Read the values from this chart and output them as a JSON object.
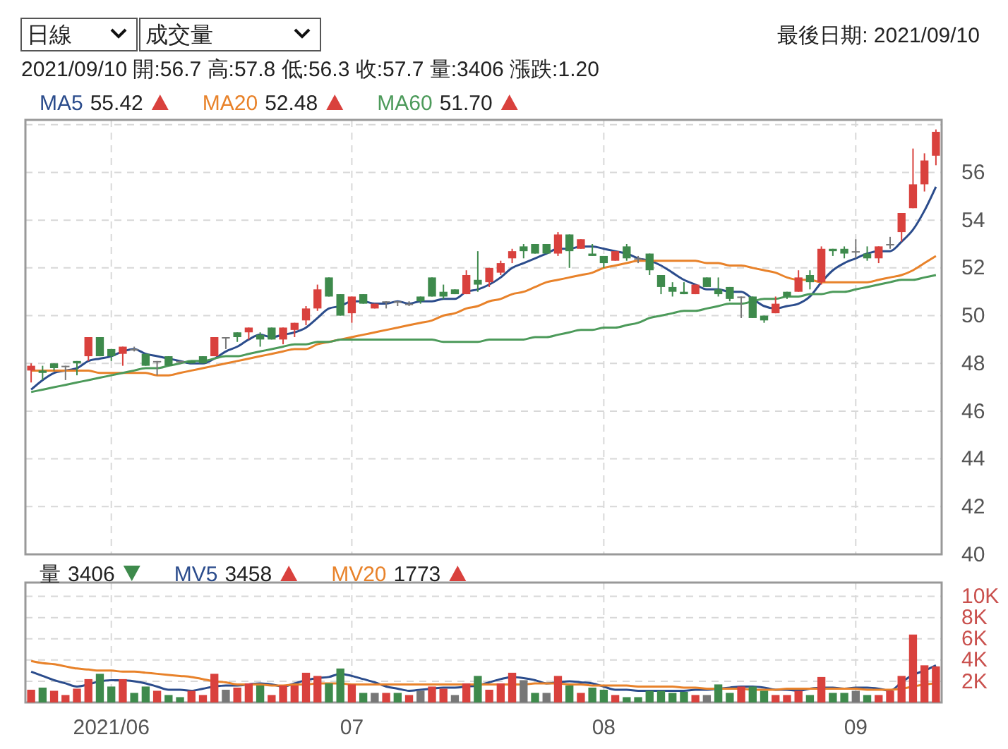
{
  "chart_data": [
    {
      "type": "candlestick",
      "subtitle": "2021/09/10 開:56.7 高:57.8 低:56.3 收:57.7 量:3406 漲跌:1.20",
      "annotations": [
        "日線",
        "成交量",
        "最後日期: 2021/09/10",
        "55.42",
        "52.48",
        "51.70"
      ],
      "categories": [
        null,
        null,
        null,
        null,
        null,
        null,
        null,
        "2021/06",
        null,
        null,
        null,
        null,
        null,
        null,
        null,
        null,
        null,
        null,
        null,
        null,
        null,
        null,
        null,
        null,
        null,
        null,
        null,
        null,
        "07",
        null,
        null,
        null,
        null,
        null,
        null,
        null,
        null,
        null,
        null,
        null,
        null,
        null,
        null,
        null,
        null,
        null,
        null,
        null,
        null,
        null,
        "08",
        null,
        null,
        null,
        null,
        null,
        null,
        null,
        null,
        null,
        null,
        null,
        null,
        null,
        null,
        null,
        null,
        null,
        null,
        null,
        null,
        null,
        "09",
        null,
        null,
        null,
        null,
        null,
        null,
        null
      ],
      "ohlc": [
        [
          47.7,
          48.0,
          47.2,
          47.9
        ],
        [
          47.7,
          47.9,
          47.3,
          47.6
        ],
        [
          48.0,
          48.0,
          47.7,
          47.8
        ],
        [
          47.9,
          47.9,
          47.3,
          47.9
        ],
        [
          48.1,
          48.1,
          47.5,
          48.0
        ],
        [
          48.3,
          49.1,
          48.1,
          49.1
        ],
        [
          49.1,
          49.1,
          48.3,
          48.3
        ],
        [
          48.6,
          48.6,
          48.1,
          48.3
        ],
        [
          48.4,
          48.7,
          47.9,
          48.7
        ],
        [
          48.6,
          48.7,
          48.5,
          48.6
        ],
        [
          48.4,
          48.4,
          47.9,
          47.9
        ],
        [
          48.1,
          48.1,
          47.5,
          48.1
        ],
        [
          48.3,
          48.3,
          47.9,
          47.9
        ],
        [
          48.1,
          48.1,
          48.0,
          48.1
        ],
        [
          48.1,
          48.1,
          48.0,
          48.0
        ],
        [
          48.3,
          48.3,
          48.0,
          48.0
        ],
        [
          48.3,
          49.1,
          48.3,
          49.1
        ],
        [
          49.1,
          49.1,
          48.6,
          49.1
        ],
        [
          49.3,
          49.3,
          48.9,
          49.1
        ],
        [
          49.3,
          49.5,
          49.0,
          49.5
        ],
        [
          49.2,
          49.3,
          48.7,
          49.0
        ],
        [
          49.5,
          49.5,
          49.0,
          49.0
        ],
        [
          49.0,
          49.5,
          48.8,
          49.5
        ],
        [
          49.4,
          49.7,
          49.1,
          49.7
        ],
        [
          49.8,
          50.4,
          49.6,
          50.3
        ],
        [
          50.3,
          51.3,
          50.2,
          51.1
        ],
        [
          51.6,
          51.6,
          50.8,
          50.8
        ],
        [
          50.9,
          50.9,
          50.0,
          50.0
        ],
        [
          50.1,
          50.8,
          49.7,
          50.8
        ],
        [
          50.9,
          50.9,
          50.5,
          50.5
        ],
        [
          50.3,
          50.5,
          50.3,
          50.5
        ],
        [
          50.6,
          50.6,
          50.3,
          50.6
        ],
        [
          50.6,
          50.6,
          50.4,
          50.6
        ],
        [
          50.5,
          50.6,
          50.4,
          50.5
        ],
        [
          50.8,
          50.8,
          50.5,
          50.6
        ],
        [
          51.6,
          51.6,
          50.8,
          50.8
        ],
        [
          51.0,
          51.3,
          50.7,
          50.8
        ],
        [
          51.1,
          51.1,
          50.9,
          50.9
        ],
        [
          50.9,
          51.9,
          50.9,
          51.7
        ],
        [
          51.5,
          52.7,
          51.0,
          51.3
        ],
        [
          51.4,
          52.0,
          51.2,
          52.0
        ],
        [
          51.8,
          52.3,
          51.7,
          52.2
        ],
        [
          52.4,
          52.8,
          52.2,
          52.7
        ],
        [
          52.9,
          53.0,
          52.4,
          52.7
        ],
        [
          53.0,
          53.0,
          52.6,
          52.6
        ],
        [
          53.0,
          53.0,
          52.6,
          52.6
        ],
        [
          52.6,
          53.5,
          52.5,
          53.4
        ],
        [
          53.4,
          53.4,
          52.0,
          52.7
        ],
        [
          52.8,
          53.2,
          52.8,
          53.2
        ],
        [
          52.6,
          53.0,
          52.5,
          52.5
        ],
        [
          52.5,
          52.5,
          52.0,
          52.2
        ],
        [
          52.3,
          52.7,
          52.3,
          52.7
        ],
        [
          52.9,
          53.0,
          52.3,
          52.4
        ],
        [
          52.4,
          52.5,
          52.2,
          52.4
        ],
        [
          52.6,
          52.6,
          51.7,
          51.9
        ],
        [
          51.7,
          51.7,
          50.9,
          51.2
        ],
        [
          51.2,
          51.4,
          50.8,
          51.0
        ],
        [
          51.0,
          51.4,
          50.9,
          50.9
        ],
        [
          50.9,
          51.3,
          50.9,
          51.3
        ],
        [
          51.6,
          51.6,
          51.2,
          51.2
        ],
        [
          51.1,
          51.6,
          50.8,
          50.9
        ],
        [
          51.2,
          51.2,
          50.6,
          50.7
        ],
        [
          50.8,
          50.8,
          49.9,
          50.8
        ],
        [
          50.8,
          50.8,
          49.9,
          49.9
        ],
        [
          50.0,
          50.0,
          49.7,
          49.8
        ],
        [
          50.1,
          50.8,
          50.1,
          50.5
        ],
        [
          51.0,
          51.0,
          50.7,
          50.8
        ],
        [
          51.0,
          51.9,
          51.0,
          51.6
        ],
        [
          51.7,
          51.9,
          51.1,
          51.4
        ],
        [
          51.4,
          52.9,
          51.3,
          52.8
        ],
        [
          52.8,
          52.8,
          52.5,
          52.7
        ],
        [
          52.8,
          52.9,
          52.4,
          52.6
        ],
        [
          52.7,
          53.2,
          52.4,
          52.7
        ],
        [
          52.6,
          52.9,
          52.3,
          52.4
        ],
        [
          52.4,
          52.9,
          52.2,
          52.9
        ],
        [
          53.0,
          53.3,
          52.8,
          53.0
        ],
        [
          53.5,
          54.3,
          53.1,
          54.3
        ],
        [
          54.5,
          57.0,
          54.5,
          55.5
        ],
        [
          55.5,
          56.8,
          55.2,
          56.5
        ],
        [
          56.7,
          57.8,
          56.3,
          57.7
        ]
      ],
      "series": [
        {
          "name": "MA5",
          "type": "line",
          "color": "#2b4c8c",
          "values": [
            46.9,
            47.3,
            47.6,
            47.7,
            47.8,
            48.1,
            48.2,
            48.3,
            48.5,
            48.6,
            48.4,
            48.3,
            48.2,
            48.1,
            48.0,
            48.0,
            48.2,
            48.5,
            48.7,
            49.0,
            49.2,
            49.1,
            49.2,
            49.3,
            49.5,
            49.9,
            50.3,
            50.4,
            50.6,
            50.6,
            50.5,
            50.5,
            50.6,
            50.5,
            50.6,
            50.6,
            50.7,
            50.7,
            51.0,
            51.1,
            51.3,
            51.6,
            52.0,
            52.2,
            52.4,
            52.6,
            52.8,
            52.8,
            52.9,
            52.9,
            52.8,
            52.7,
            52.6,
            52.4,
            52.3,
            52.1,
            51.8,
            51.5,
            51.3,
            51.1,
            51.1,
            51.0,
            51.0,
            50.7,
            50.4,
            50.3,
            50.4,
            50.5,
            50.8,
            51.4,
            51.9,
            52.2,
            52.4,
            52.6,
            52.7,
            52.7,
            53.1,
            53.6,
            54.4,
            55.4
          ]
        },
        {
          "name": "MA20",
          "type": "line",
          "color": "#e8822a",
          "values": [
            47.7,
            47.7,
            47.7,
            47.7,
            47.7,
            47.7,
            47.6,
            47.6,
            47.6,
            47.6,
            47.6,
            47.5,
            47.5,
            47.6,
            47.7,
            47.8,
            47.9,
            48.0,
            48.1,
            48.2,
            48.3,
            48.4,
            48.5,
            48.6,
            48.6,
            48.8,
            48.9,
            49.0,
            49.1,
            49.2,
            49.3,
            49.4,
            49.5,
            49.6,
            49.7,
            49.8,
            50.0,
            50.1,
            50.3,
            50.4,
            50.6,
            50.7,
            50.9,
            51.0,
            51.2,
            51.4,
            51.5,
            51.6,
            51.7,
            51.8,
            52.0,
            52.1,
            52.2,
            52.3,
            52.3,
            52.3,
            52.3,
            52.3,
            52.3,
            52.2,
            52.2,
            52.1,
            52.1,
            52.0,
            51.9,
            51.8,
            51.6,
            51.5,
            51.5,
            51.4,
            51.4,
            51.4,
            51.4,
            51.4,
            51.5,
            51.6,
            51.7,
            51.9,
            52.2,
            52.5
          ]
        },
        {
          "name": "MA60",
          "type": "line",
          "color": "#4c9a5a",
          "values": [
            46.8,
            46.9,
            47.0,
            47.1,
            47.2,
            47.3,
            47.4,
            47.5,
            47.6,
            47.7,
            47.8,
            47.8,
            47.9,
            48.0,
            48.1,
            48.1,
            48.2,
            48.3,
            48.3,
            48.4,
            48.5,
            48.6,
            48.7,
            48.8,
            48.8,
            48.9,
            48.9,
            49.0,
            49.0,
            49.0,
            49.0,
            49.0,
            49.0,
            49.0,
            49.0,
            49.0,
            48.9,
            48.9,
            48.9,
            48.9,
            49.0,
            49.0,
            49.0,
            49.0,
            49.1,
            49.1,
            49.2,
            49.3,
            49.4,
            49.4,
            49.5,
            49.5,
            49.6,
            49.7,
            49.9,
            50.0,
            50.1,
            50.2,
            50.2,
            50.3,
            50.4,
            50.5,
            50.5,
            50.6,
            50.7,
            50.7,
            50.8,
            50.8,
            50.9,
            50.9,
            51.0,
            51.0,
            51.1,
            51.2,
            51.3,
            51.4,
            51.5,
            51.5,
            51.6,
            51.7
          ]
        }
      ],
      "ylim": [
        40,
        58.2
      ],
      "yticks": [
        40,
        42,
        44,
        46,
        48,
        50,
        52,
        54,
        56,
        {
          "value": 58,
          "label": null
        }
      ],
      "grid": true,
      "legend": "top left",
      "tick_labels": "y"
    },
    {
      "type": "bar",
      "annotations": [
        "量",
        "3406",
        "3458",
        "1773"
      ],
      "categories": [
        null,
        null,
        null,
        null,
        null,
        null,
        null,
        "2021/06",
        null,
        null,
        null,
        null,
        null,
        null,
        null,
        null,
        null,
        null,
        null,
        null,
        null,
        null,
        null,
        null,
        null,
        null,
        null,
        null,
        "07",
        null,
        null,
        null,
        null,
        null,
        null,
        null,
        null,
        null,
        null,
        null,
        null,
        null,
        null,
        null,
        null,
        null,
        null,
        null,
        null,
        null,
        "08",
        null,
        null,
        null,
        null,
        null,
        null,
        null,
        null,
        null,
        null,
        null,
        null,
        null,
        null,
        null,
        null,
        null,
        null,
        null,
        null,
        null,
        "09",
        null,
        null,
        null,
        null,
        null,
        null,
        null
      ],
      "series": [
        {
          "colors": [
            "#d9413d",
            "#3e8a4c",
            "#d9413d",
            "#d9413d",
            "#d9413d",
            "#d9413d",
            "#3e8a4c",
            "#3e8a4c",
            "#d9413d",
            "#3e8a4c",
            "#3e8a4c",
            "#d9413d",
            "#3e8a4c",
            "#3e8a4c",
            "#d9413d",
            "#d9413d",
            "#d9413d",
            "#777777",
            "#d9413d",
            "#d9413d",
            "#3e8a4c",
            "#d9413d",
            "#d9413d",
            "#d9413d",
            "#d9413d",
            "#d9413d",
            "#3e8a4c",
            "#3e8a4c",
            "#d9413d",
            "#3e8a4c",
            "#777777",
            "#d9413d",
            "#3e8a4c",
            "#d9413d",
            "#777777",
            "#d9413d",
            "#d9413d",
            "#777777",
            "#d9413d",
            "#3e8a4c",
            "#d9413d",
            "#d9413d",
            "#d9413d",
            "#777777",
            "#3e8a4c",
            "#777777",
            "#d9413d",
            "#3e8a4c",
            "#d9413d",
            "#3e8a4c",
            "#3e8a4c",
            "#d9413d",
            "#3e8a4c",
            "#3e8a4c",
            "#3e8a4c",
            "#3e8a4c",
            "#3e8a4c",
            "#3e8a4c",
            "#d9413d",
            "#777777",
            "#3e8a4c",
            "#3e8a4c",
            "#d9413d",
            "#3e8a4c",
            "#3e8a4c",
            "#d9413d",
            "#d9413d",
            "#d9413d",
            "#3e8a4c",
            "#d9413d",
            "#3e8a4c",
            "#3e8a4c",
            "#777777",
            "#3e8a4c",
            "#d9413d",
            "#d9413d",
            "#d9413d",
            "#d9413d",
            "#d9413d",
            "#d9413d"
          ],
          "values": [
            1200,
            1400,
            1100,
            700,
            1300,
            2200,
            2700,
            1500,
            2200,
            900,
            1500,
            1100,
            700,
            500,
            1100,
            700,
            2700,
            1200,
            1400,
            1800,
            1600,
            700,
            1600,
            1600,
            2800,
            2500,
            1800,
            3200,
            1700,
            900,
            900,
            900,
            900,
            700,
            1100,
            1500,
            1300,
            700,
            1800,
            2500,
            1200,
            1800,
            2800,
            2100,
            900,
            900,
            2500,
            1600,
            900,
            1400,
            1200,
            700,
            500,
            500,
            1100,
            1100,
            900,
            1000,
            700,
            700,
            1700,
            900,
            1500,
            1500,
            1100,
            700,
            700,
            1100,
            700,
            2400,
            900,
            900,
            1100,
            700,
            700,
            1100,
            2500,
            6400,
            3500,
            3400
          ]
        },
        {
          "name": "MV5",
          "type": "line",
          "color": "#2b4c8c",
          "values": [
            2900,
            2500,
            2100,
            1800,
            1500,
            1700,
            2000,
            2100,
            2100,
            2000,
            1800,
            1500,
            1200,
            1200,
            1100,
            1300,
            1500,
            1600,
            1600,
            1700,
            1800,
            1700,
            1500,
            1800,
            2100,
            2300,
            2400,
            2700,
            2500,
            2200,
            1900,
            1500,
            1300,
            1100,
            1200,
            1300,
            1400,
            1400,
            1500,
            1600,
            1900,
            2200,
            2400,
            2300,
            2100,
            1800,
            1900,
            2000,
            1900,
            1800,
            1500,
            1200,
            1200,
            1100,
            1100,
            1100,
            1100,
            1100,
            1200,
            1200,
            1300,
            1400,
            1500,
            1500,
            1400,
            1200,
            1200,
            1100,
            1300,
            1400,
            1400,
            1300,
            1400,
            1400,
            1300,
            1100,
            1900,
            2600,
            3000,
            3500
          ]
        },
        {
          "name": "MV20",
          "type": "line",
          "color": "#e8822a",
          "values": [
            3900,
            3700,
            3600,
            3400,
            3200,
            3100,
            3000,
            3000,
            2900,
            2900,
            2800,
            2700,
            2600,
            2500,
            2400,
            2200,
            2000,
            1900,
            1700,
            1700,
            1700,
            1600,
            1600,
            1700,
            1700,
            1800,
            1800,
            1800,
            1700,
            1700,
            1700,
            1700,
            1700,
            1700,
            1700,
            1700,
            1700,
            1700,
            1700,
            1700,
            1700,
            1700,
            1700,
            1700,
            1800,
            1800,
            1800,
            1700,
            1700,
            1600,
            1600,
            1600,
            1600,
            1500,
            1500,
            1500,
            1500,
            1400,
            1400,
            1300,
            1300,
            1300,
            1300,
            1200,
            1200,
            1200,
            1300,
            1300,
            1300,
            1300,
            1300,
            1300,
            1300,
            1200,
            1200,
            1200,
            1300,
            1500,
            1700,
            1800
          ]
        }
      ],
      "ylim": [
        0,
        11300
      ],
      "yticks": [
        {
          "value": 2000,
          "label": "2K"
        },
        {
          "value": 4000,
          "label": "4K"
        },
        {
          "value": 6000,
          "label": "6K"
        },
        {
          "value": 8000,
          "label": "8K"
        },
        {
          "value": 10000,
          "label": "10K"
        }
      ],
      "grid": true,
      "legend": "top left"
    }
  ]
}
